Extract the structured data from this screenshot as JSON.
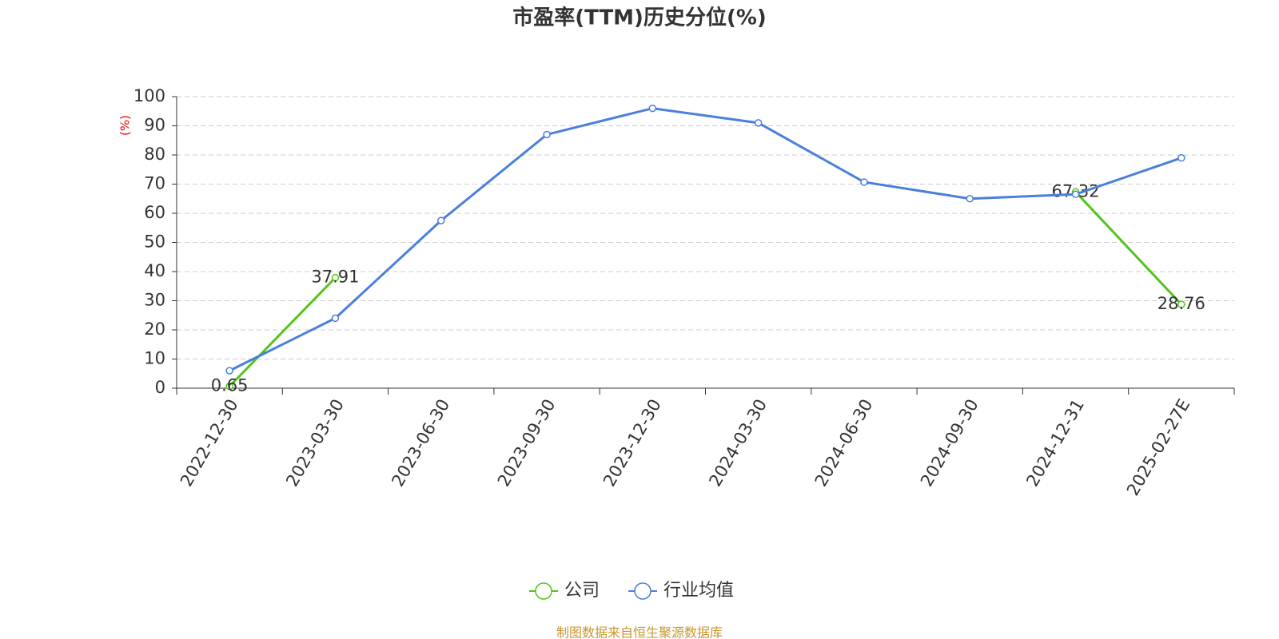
{
  "chart_data": {
    "type": "line",
    "title": "市盈率(TTM)历史分位(%)",
    "y_label": "(%)",
    "categories": [
      "2022-12-30",
      "2023-03-30",
      "2023-06-30",
      "2023-09-30",
      "2023-12-30",
      "2024-03-30",
      "2024-06-30",
      "2024-09-30",
      "2024-12-31",
      "2025-02-27E"
    ],
    "series": [
      {
        "name": "公司",
        "color": "#52c41a",
        "show_labels": true,
        "values": [
          0.65,
          37.91,
          null,
          null,
          null,
          null,
          null,
          null,
          67.32,
          28.76
        ]
      },
      {
        "name": "行业均值",
        "color": "#4a7fdc",
        "show_labels": false,
        "values": [
          6,
          24,
          57.5,
          87,
          96,
          91,
          70.7,
          65,
          66.5,
          79
        ]
      }
    ],
    "ylim": [
      0,
      100
    ],
    "yticks": [
      0,
      10,
      20,
      30,
      40,
      50,
      60,
      70,
      80,
      90,
      100
    ],
    "grid": true,
    "legend": "bottom",
    "source": "制图数据来自恒生聚源数据库"
  }
}
